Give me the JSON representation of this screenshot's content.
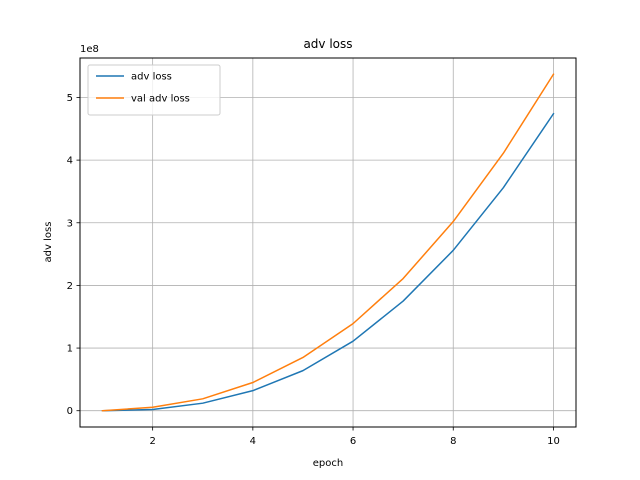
{
  "chart_data": {
    "type": "line",
    "title": "adv loss",
    "xlabel": "epoch",
    "ylabel": "adv loss",
    "y_offset_label": "1e8",
    "x": [
      1,
      2,
      3,
      4,
      5,
      6,
      7,
      8,
      9,
      10
    ],
    "series": [
      {
        "name": "adv loss",
        "color": "#1f77b4",
        "values": [
          0.0,
          0.02,
          0.12,
          0.32,
          0.64,
          1.11,
          1.75,
          2.56,
          3.56,
          4.74
        ]
      },
      {
        "name": "val adv loss",
        "color": "#ff7f0e",
        "values": [
          0.0,
          0.055,
          0.19,
          0.45,
          0.85,
          1.39,
          2.11,
          3.02,
          4.11,
          5.37
        ]
      }
    ],
    "xlim": [
      0.55,
      10.45
    ],
    "ylim": [
      -0.26,
      5.63
    ],
    "x_ticks": [
      2,
      4,
      6,
      8,
      10
    ],
    "x_tick_labels": [
      "2",
      "4",
      "6",
      "8",
      "10"
    ],
    "y_ticks": [
      0,
      1,
      2,
      3,
      4,
      5
    ],
    "y_tick_labels": [
      "0",
      "1",
      "2",
      "3",
      "4",
      "5"
    ],
    "grid": true,
    "legend_position": "upper-left"
  }
}
